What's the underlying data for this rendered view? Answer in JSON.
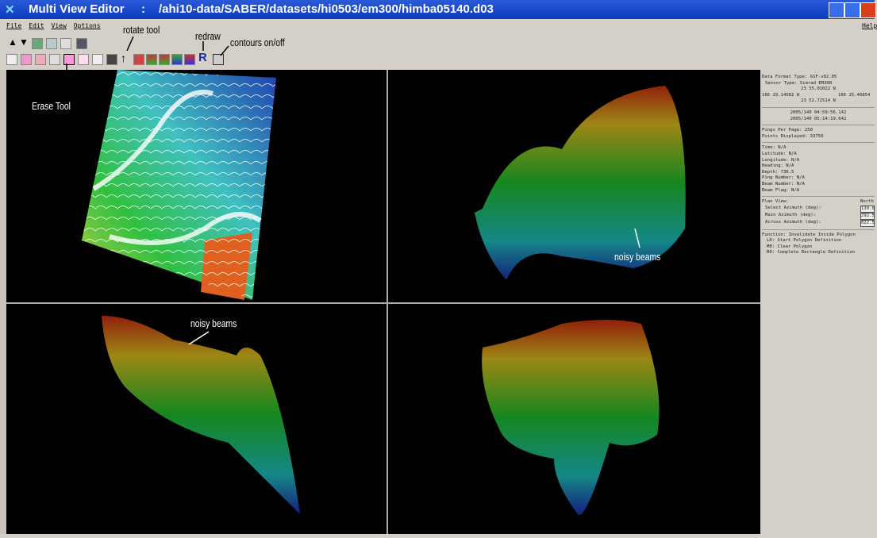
{
  "window": {
    "app_name": "Multi View Editor",
    "separator": ":",
    "path": "/ahi10-data/SABER/datasets/hi0503/em300/himba05140.d03"
  },
  "menu": {
    "items": [
      "File",
      "Edit",
      "View",
      "Options"
    ],
    "help": "Help"
  },
  "annotations": {
    "rotate_tool": "rotate tool",
    "redraw": "redraw",
    "contours": "contours on/off",
    "erase_tool": "Erase Tool",
    "noisy_beams_1": "noisy beams",
    "noisy_beams_2": "noisy beams"
  },
  "info": {
    "format": "Data Format Type: GSF-v02.05",
    "sensor": "Sensor Type: Simrad EM300",
    "north_lat": "23 55.01022 N",
    "west_lon": "166 29.14582 W",
    "east_lon": "166 25.46854",
    "south_lat": "23 52.72514 N",
    "start_time": "2005/140 04:59:56.142",
    "end_time": "2005/140 05:14:19.642",
    "pings": "Pings Per Page: 250",
    "points": "Points Displayed: 33750",
    "fields": [
      "Time: N/A",
      "Latitude: N/A",
      "Longitude: N/A",
      "Heading: N/A",
      "Depth: 736.5",
      "Ping Number: N/A",
      "Beam Number: N/A",
      "Beam Flag: N/A"
    ],
    "plan_view": "Plan View:",
    "plan_view_value": "North",
    "azimuths": [
      {
        "label": "Select Azimuth (deg):",
        "value": "139.0"
      },
      {
        "label": "Main Azimuth (deg):",
        "value": "292.5"
      },
      {
        "label": "Across Azimuth (deg):",
        "value": "022.5"
      }
    ],
    "function": [
      "Function: Invalidate Inside Polygon",
      "L0: Start Polygon Definition",
      "M0: Clear Polygon",
      "R0: Complete Rectangle Definition"
    ]
  }
}
